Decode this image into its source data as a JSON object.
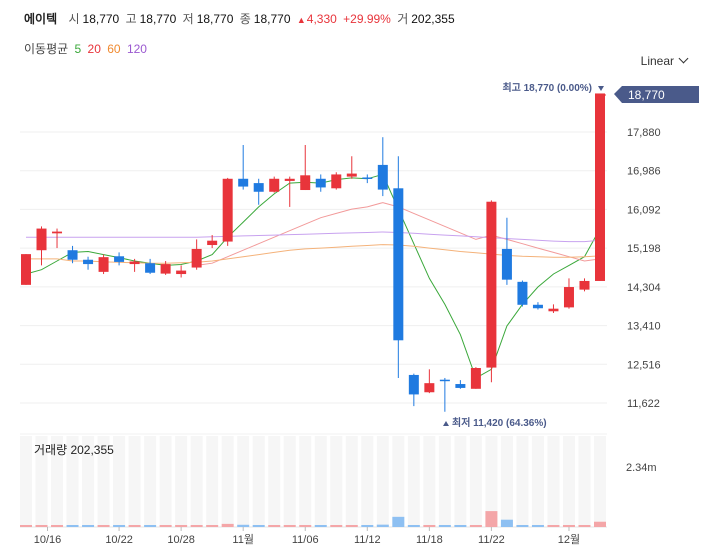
{
  "header": {
    "stock_name": "에이텍",
    "open_label": "시",
    "open_value": "18,770",
    "high_label": "고",
    "high_value": "18,770",
    "low_label": "저",
    "low_value": "18,770",
    "close_label": "종",
    "close_value": "18,770",
    "change_arrow": "▲",
    "change_value": "4,330",
    "change_pct": "+29.99%",
    "volume_label": "거",
    "volume_value": "202,355"
  },
  "ma_legend": {
    "label": "이동평균",
    "items": [
      {
        "text": "5",
        "color": "#3aa83a"
      },
      {
        "text": "20",
        "color": "#e8343b"
      },
      {
        "text": "60",
        "color": "#f08a30"
      },
      {
        "text": "120",
        "color": "#9b59d0"
      }
    ]
  },
  "scale_toggle": {
    "label": "Linear"
  },
  "annotations": {
    "high_text": "최고 18,770 (0.00%)",
    "low_text": "최저 11,420 (64.36%)",
    "current_price": "18,770",
    "volume_label": "거래량 202,355",
    "volume_tick": "2.34m"
  },
  "colors": {
    "up": "#e8343b",
    "down": "#1f7ae0",
    "up_vol": "#f4a6a8",
    "down_vol": "#8ec0f2",
    "ma5": "#3aa83a",
    "ma20": "#f29a9a",
    "ma60": "#f4b27a",
    "ma120": "#c8a2ef",
    "price_tag": "#4a5a8a",
    "grid": "#efefef"
  },
  "chart_data": {
    "type": "candlestick",
    "y_ticks": [
      "17,880",
      "16,986",
      "16,092",
      "15,198",
      "14,304",
      "13,410",
      "12,516",
      "11,622"
    ],
    "x_ticks": [
      "10/16",
      "10/22",
      "10/28",
      "11월",
      "11/06",
      "11/12",
      "11/18",
      "11/22",
      "12월"
    ],
    "ylim": [
      11190,
      18770
    ],
    "candles": [
      {
        "o": 14350,
        "c": 15060,
        "h": 15060,
        "l": 14350,
        "v": 35000
      },
      {
        "o": 15150,
        "c": 15650,
        "h": 15700,
        "l": 14800,
        "v": 30000
      },
      {
        "o": 15540,
        "c": 15580,
        "h": 15650,
        "l": 15200,
        "v": 15000
      },
      {
        "o": 15150,
        "c": 14930,
        "h": 15250,
        "l": 14850,
        "v": 20000
      },
      {
        "o": 14930,
        "c": 14830,
        "h": 15000,
        "l": 14700,
        "v": 12000
      },
      {
        "o": 14650,
        "c": 14990,
        "h": 15050,
        "l": 14600,
        "v": 18000
      },
      {
        "o": 15010,
        "c": 14880,
        "h": 15100,
        "l": 14800,
        "v": 15000
      },
      {
        "o": 14830,
        "c": 14890,
        "h": 14950,
        "l": 14650,
        "v": 14000
      },
      {
        "o": 14850,
        "c": 14630,
        "h": 14950,
        "l": 14600,
        "v": 18000
      },
      {
        "o": 14610,
        "c": 14830,
        "h": 14900,
        "l": 14580,
        "v": 16000
      },
      {
        "o": 14600,
        "c": 14680,
        "h": 14800,
        "l": 14520,
        "v": 14000
      },
      {
        "o": 14750,
        "c": 15180,
        "h": 15400,
        "l": 14700,
        "v": 28000
      },
      {
        "o": 15270,
        "c": 15370,
        "h": 15500,
        "l": 15200,
        "v": 24000
      },
      {
        "o": 15350,
        "c": 16800,
        "h": 16820,
        "l": 15250,
        "v": 120000
      },
      {
        "o": 16800,
        "c": 16620,
        "h": 17580,
        "l": 16550,
        "v": 85000
      },
      {
        "o": 16700,
        "c": 16500,
        "h": 16800,
        "l": 16200,
        "v": 40000
      },
      {
        "o": 16500,
        "c": 16800,
        "h": 16850,
        "l": 16480,
        "v": 50000
      },
      {
        "o": 16750,
        "c": 16800,
        "h": 16850,
        "l": 16150,
        "v": 45000
      },
      {
        "o": 16540,
        "c": 16880,
        "h": 17580,
        "l": 16540,
        "v": 60000
      },
      {
        "o": 16800,
        "c": 16600,
        "h": 16900,
        "l": 16500,
        "v": 38000
      },
      {
        "o": 16580,
        "c": 16900,
        "h": 16950,
        "l": 16550,
        "v": 48000
      },
      {
        "o": 16850,
        "c": 16920,
        "h": 17320,
        "l": 16800,
        "v": 52000
      },
      {
        "o": 16830,
        "c": 16820,
        "h": 16900,
        "l": 16700,
        "v": 35000
      },
      {
        "o": 17120,
        "c": 16550,
        "h": 17760,
        "l": 16400,
        "v": 90000
      },
      {
        "o": 16580,
        "c": 13070,
        "h": 17320,
        "l": 12200,
        "v": 390000
      },
      {
        "o": 12270,
        "c": 11820,
        "h": 12300,
        "l": 11550,
        "v": 65000
      },
      {
        "o": 11870,
        "c": 12080,
        "h": 12400,
        "l": 11850,
        "v": 40000
      },
      {
        "o": 12160,
        "c": 12140,
        "h": 12200,
        "l": 11420,
        "v": 35000
      },
      {
        "o": 12060,
        "c": 11970,
        "h": 12150,
        "l": 11950,
        "v": 30000
      },
      {
        "o": 11950,
        "c": 12430,
        "h": 12450,
        "l": 11950,
        "v": 38000
      },
      {
        "o": 12440,
        "c": 16270,
        "h": 16300,
        "l": 12100,
        "v": 610000
      },
      {
        "o": 15180,
        "c": 14470,
        "h": 15900,
        "l": 14350,
        "v": 280000
      },
      {
        "o": 14420,
        "c": 13890,
        "h": 14450,
        "l": 13850,
        "v": 30000
      },
      {
        "o": 13890,
        "c": 13810,
        "h": 13950,
        "l": 13780,
        "v": 26000
      },
      {
        "o": 13740,
        "c": 13800,
        "h": 13900,
        "l": 13700,
        "v": 22000
      },
      {
        "o": 13830,
        "c": 14300,
        "h": 14500,
        "l": 13800,
        "v": 50000
      },
      {
        "o": 14240,
        "c": 14440,
        "h": 14500,
        "l": 14200,
        "v": 26000
      },
      {
        "o": 14440,
        "c": 18770,
        "h": 18770,
        "l": 14440,
        "v": 202355
      }
    ],
    "ma": [
      {
        "name": "5",
        "color": "#3aa83a",
        "values": [
          14600,
          14700,
          14900,
          15100,
          15120,
          15050,
          14980,
          14900,
          14850,
          14800,
          14820,
          14900,
          15050,
          15450,
          15800,
          16150,
          16450,
          16700,
          16720,
          16700,
          16780,
          16820,
          16800,
          16900,
          16100,
          15300,
          14500,
          13900,
          13200,
          12200,
          12400,
          13400,
          13900,
          14300,
          14600,
          14800,
          15000,
          15650
        ]
      },
      {
        "name": "20",
        "color": "#f29a9a",
        "values": [
          null,
          null,
          null,
          null,
          null,
          null,
          null,
          null,
          null,
          null,
          null,
          14800,
          14850,
          15000,
          15150,
          15300,
          15450,
          15600,
          15750,
          15900,
          16000,
          16100,
          16150,
          16250,
          16150,
          16000,
          15850,
          15700,
          15550,
          15400,
          15500,
          15400,
          15300,
          15200,
          15100,
          15000,
          14900,
          14950
        ]
      },
      {
        "name": "60",
        "color": "#f4b27a",
        "values": [
          14950,
          14950,
          14950,
          14900,
          14900,
          14880,
          14870,
          14860,
          14850,
          14850,
          14860,
          14870,
          14900,
          14950,
          15000,
          15050,
          15100,
          15150,
          15180,
          15200,
          15220,
          15240,
          15260,
          15280,
          15270,
          15240,
          15200,
          15160,
          15120,
          15090,
          15060,
          15030,
          15010,
          15000,
          14990,
          14990,
          15000,
          15020
        ]
      },
      {
        "name": "120",
        "color": "#c8a2ef",
        "values": [
          15450,
          15450,
          15450,
          15450,
          15450,
          15450,
          15450,
          15450,
          15450,
          15450,
          15450,
          15450,
          15460,
          15470,
          15480,
          15490,
          15500,
          15510,
          15520,
          15530,
          15540,
          15550,
          15560,
          15570,
          15560,
          15540,
          15520,
          15500,
          15480,
          15460,
          15440,
          15420,
          15400,
          15380,
          15360,
          15350,
          15350,
          15380
        ]
      }
    ]
  }
}
